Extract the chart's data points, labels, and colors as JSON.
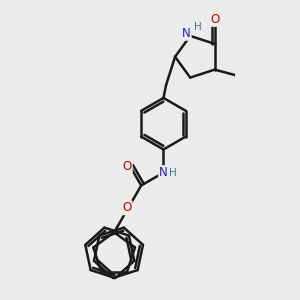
{
  "background_color": "#ebebeb",
  "line_color": "#1a1a1a",
  "bond_width": 1.8,
  "atom_colors": {
    "N": "#2020c8",
    "O": "#cc0000",
    "C": "#1a1a1a"
  }
}
